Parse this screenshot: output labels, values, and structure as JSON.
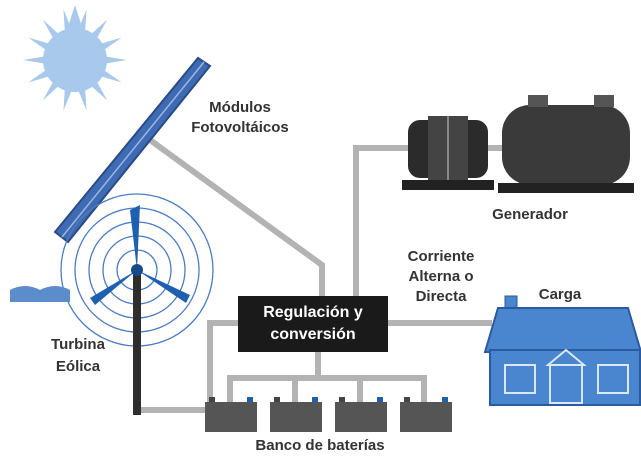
{
  "nodes": [
    {
      "id": "modules",
      "label_lines": [
        "Módulos",
        "Fotovoltáicos"
      ]
    },
    {
      "id": "generator",
      "label_lines": [
        "Generador"
      ]
    },
    {
      "id": "current",
      "label_lines": [
        "Corriente",
        "Alterna o",
        "Directa"
      ]
    },
    {
      "id": "load",
      "label_lines": [
        "Carga"
      ]
    },
    {
      "id": "controller",
      "label_lines": [
        "Regulación y",
        "conversión"
      ]
    },
    {
      "id": "turbine",
      "label_lines": [
        "Turbina",
        "Eólica"
      ]
    },
    {
      "id": "batteries",
      "label_lines": [
        "Banco de baterías"
      ]
    }
  ]
}
